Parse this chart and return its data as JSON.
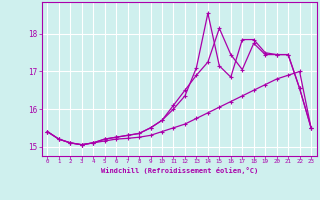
{
  "xlabel": "Windchill (Refroidissement éolien,°C)",
  "background_color": "#cff0ee",
  "grid_color": "#ffffff",
  "line_color": "#aa00aa",
  "xlim": [
    -0.5,
    23.5
  ],
  "ylim": [
    14.75,
    18.85
  ],
  "yticks": [
    15,
    16,
    17,
    18
  ],
  "xticks": [
    0,
    1,
    2,
    3,
    4,
    5,
    6,
    7,
    8,
    9,
    10,
    11,
    12,
    13,
    14,
    15,
    16,
    17,
    18,
    19,
    20,
    21,
    22,
    23
  ],
  "series1_x": [
    0,
    1,
    2,
    3,
    4,
    5,
    6,
    7,
    8,
    9,
    10,
    11,
    12,
    13,
    14,
    15,
    16,
    17,
    18,
    19,
    20,
    21,
    22,
    23
  ],
  "series1_y": [
    15.4,
    15.2,
    15.1,
    15.05,
    15.1,
    15.15,
    15.2,
    15.22,
    15.25,
    15.3,
    15.4,
    15.5,
    15.6,
    15.75,
    15.9,
    16.05,
    16.2,
    16.35,
    16.5,
    16.65,
    16.8,
    16.9,
    17.0,
    15.5
  ],
  "series2_x": [
    0,
    1,
    2,
    3,
    4,
    5,
    6,
    7,
    8,
    9,
    10,
    11,
    12,
    13,
    14,
    15,
    16,
    17,
    18,
    19,
    20,
    21,
    22,
    23
  ],
  "series2_y": [
    15.4,
    15.2,
    15.1,
    15.05,
    15.1,
    15.2,
    15.25,
    15.3,
    15.35,
    15.5,
    15.7,
    16.1,
    16.5,
    16.9,
    17.25,
    18.15,
    17.45,
    17.05,
    17.75,
    17.45,
    17.45,
    17.45,
    16.55,
    15.5
  ],
  "series3_x": [
    0,
    1,
    2,
    3,
    4,
    5,
    6,
    7,
    8,
    9,
    10,
    11,
    12,
    13,
    14,
    15,
    16,
    17,
    18,
    19,
    20,
    21,
    22,
    23
  ],
  "series3_y": [
    15.4,
    15.2,
    15.1,
    15.05,
    15.1,
    15.2,
    15.25,
    15.3,
    15.35,
    15.5,
    15.7,
    16.0,
    16.35,
    17.1,
    18.55,
    17.15,
    16.85,
    17.85,
    17.85,
    17.5,
    17.45,
    17.45,
    16.55,
    15.5
  ]
}
